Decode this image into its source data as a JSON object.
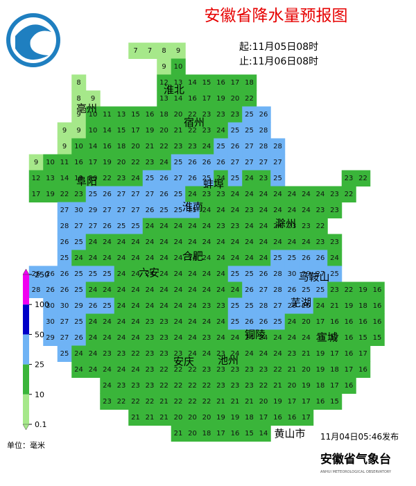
{
  "header": {
    "title": "安徽省降水量预报图",
    "start": "起:11月05日08时",
    "end": "止:11月06日08时"
  },
  "cities": [
    "亳州",
    "淮北",
    "宿州",
    "阜阳",
    "蚌埠",
    "淮南",
    "滁州",
    "合肥",
    "六安",
    "马鞍山",
    "芜湖",
    "铜陵",
    "宣城",
    "安庆",
    "池州",
    "黄山市"
  ],
  "legend": {
    "ticks": [
      0.1,
      10,
      25,
      50,
      100,
      250
    ],
    "colors": [
      "#a6e88a",
      "#3ab53a",
      "#6fb3f5",
      "#0000c8",
      "#f000f0"
    ],
    "unit": "单位：毫米"
  },
  "grid": {
    "rows": [
      [
        null,
        null,
        null,
        null,
        null,
        null,
        null,
        7,
        7,
        8,
        9,
        null,
        null,
        null,
        null,
        null,
        null,
        null,
        null,
        null,
        null,
        null,
        null,
        null,
        null
      ],
      [
        null,
        null,
        null,
        null,
        null,
        null,
        null,
        null,
        null,
        9,
        10,
        null,
        null,
        null,
        null,
        null,
        null,
        null,
        null,
        null,
        null,
        null,
        null,
        null,
        null
      ],
      [
        null,
        null,
        null,
        8,
        null,
        null,
        null,
        null,
        null,
        12,
        13,
        14,
        15,
        16,
        17,
        18,
        null,
        null,
        null,
        null,
        null,
        null,
        null,
        null,
        null
      ],
      [
        null,
        null,
        null,
        8,
        9,
        null,
        null,
        null,
        null,
        13,
        14,
        16,
        17,
        19,
        20,
        22,
        null,
        null,
        null,
        null,
        null,
        null,
        null,
        null,
        null
      ],
      [
        null,
        null,
        null,
        9,
        10,
        11,
        13,
        15,
        16,
        18,
        20,
        22,
        23,
        23,
        23,
        25,
        26,
        null,
        null,
        null,
        null,
        null,
        null,
        null,
        null
      ],
      [
        null,
        null,
        9,
        9,
        10,
        14,
        15,
        17,
        19,
        20,
        21,
        22,
        23,
        24,
        25,
        25,
        28,
        null,
        null,
        null,
        null,
        null,
        null,
        null,
        null
      ],
      [
        null,
        null,
        9,
        10,
        14,
        16,
        18,
        20,
        21,
        22,
        23,
        23,
        24,
        25,
        26,
        27,
        28,
        28,
        null,
        null,
        null,
        null,
        null,
        null,
        null
      ],
      [
        9,
        10,
        11,
        16,
        17,
        19,
        20,
        22,
        23,
        24,
        25,
        26,
        26,
        26,
        27,
        27,
        27,
        27,
        null,
        null,
        null,
        null,
        null,
        null,
        null
      ],
      [
        12,
        13,
        14,
        19,
        20,
        22,
        23,
        24,
        25,
        26,
        27,
        26,
        25,
        24,
        25,
        24,
        23,
        25,
        null,
        null,
        null,
        null,
        23,
        22,
        null
      ],
      [
        17,
        19,
        22,
        23,
        25,
        26,
        27,
        27,
        27,
        26,
        25,
        24,
        23,
        23,
        24,
        24,
        24,
        24,
        24,
        24,
        24,
        23,
        22,
        null,
        null
      ],
      [
        null,
        null,
        27,
        30,
        29,
        27,
        27,
        27,
        26,
        25,
        25,
        25,
        24,
        24,
        24,
        23,
        24,
        24,
        24,
        24,
        23,
        23,
        null,
        null,
        null
      ],
      [
        null,
        null,
        28,
        27,
        27,
        26,
        25,
        25,
        24,
        24,
        24,
        24,
        24,
        23,
        23,
        24,
        24,
        24,
        23,
        23,
        22,
        null,
        null,
        null,
        null
      ],
      [
        null,
        null,
        26,
        25,
        24,
        24,
        24,
        24,
        24,
        24,
        24,
        24,
        24,
        24,
        24,
        24,
        24,
        24,
        24,
        24,
        23,
        23,
        null,
        null,
        null
      ],
      [
        null,
        null,
        25,
        24,
        24,
        24,
        24,
        24,
        24,
        24,
        24,
        24,
        24,
        24,
        24,
        24,
        24,
        25,
        25,
        26,
        26,
        24,
        null,
        null,
        null
      ],
      [
        26,
        26,
        26,
        25,
        25,
        25,
        24,
        24,
        24,
        24,
        24,
        24,
        24,
        24,
        25,
        25,
        26,
        28,
        30,
        29,
        27,
        25,
        null,
        null,
        null
      ],
      [
        28,
        26,
        26,
        25,
        24,
        24,
        24,
        24,
        24,
        24,
        24,
        24,
        24,
        24,
        24,
        26,
        27,
        28,
        26,
        25,
        25,
        23,
        22,
        19,
        16
      ],
      [
        null,
        30,
        30,
        29,
        26,
        25,
        24,
        24,
        24,
        24,
        24,
        24,
        23,
        23,
        25,
        25,
        28,
        27,
        26,
        25,
        24,
        21,
        19,
        18,
        16
      ],
      [
        null,
        30,
        27,
        25,
        24,
        24,
        24,
        24,
        23,
        23,
        24,
        24,
        24,
        24,
        25,
        26,
        26,
        25,
        24,
        20,
        17,
        16,
        16,
        16,
        16
      ],
      [
        null,
        29,
        27,
        26,
        24,
        24,
        24,
        24,
        23,
        23,
        24,
        24,
        23,
        24,
        24,
        24,
        24,
        24,
        24,
        24,
        21,
        17,
        16,
        15,
        15
      ],
      [
        null,
        null,
        25,
        24,
        24,
        23,
        23,
        22,
        23,
        23,
        23,
        24,
        24,
        23,
        24,
        24,
        24,
        24,
        23,
        21,
        19,
        17,
        16,
        17,
        null
      ],
      [
        null,
        null,
        null,
        24,
        24,
        24,
        24,
        24,
        23,
        22,
        22,
        22,
        23,
        23,
        23,
        23,
        23,
        22,
        21,
        20,
        19,
        18,
        17,
        16,
        null
      ],
      [
        null,
        null,
        null,
        null,
        null,
        24,
        23,
        23,
        23,
        22,
        22,
        22,
        22,
        23,
        23,
        23,
        22,
        21,
        20,
        19,
        18,
        17,
        16,
        null,
        null
      ],
      [
        null,
        null,
        null,
        null,
        null,
        23,
        22,
        22,
        22,
        21,
        22,
        22,
        22,
        21,
        21,
        21,
        20,
        19,
        17,
        17,
        16,
        15,
        null,
        null,
        null
      ],
      [
        null,
        null,
        null,
        null,
        null,
        null,
        null,
        21,
        21,
        21,
        20,
        20,
        20,
        19,
        19,
        18,
        17,
        16,
        16,
        17,
        null,
        null,
        null,
        null,
        null
      ],
      [
        null,
        null,
        null,
        null,
        null,
        null,
        null,
        null,
        null,
        null,
        21,
        20,
        18,
        17,
        16,
        15,
        14,
        null,
        null,
        null,
        null,
        null,
        null,
        null,
        null
      ]
    ]
  },
  "footer": {
    "published": "11月04日05:46发布",
    "agency": "安徽省气象台",
    "agency_en": "ANHUI METEOROLOGICAL OBSERVATORY"
  }
}
